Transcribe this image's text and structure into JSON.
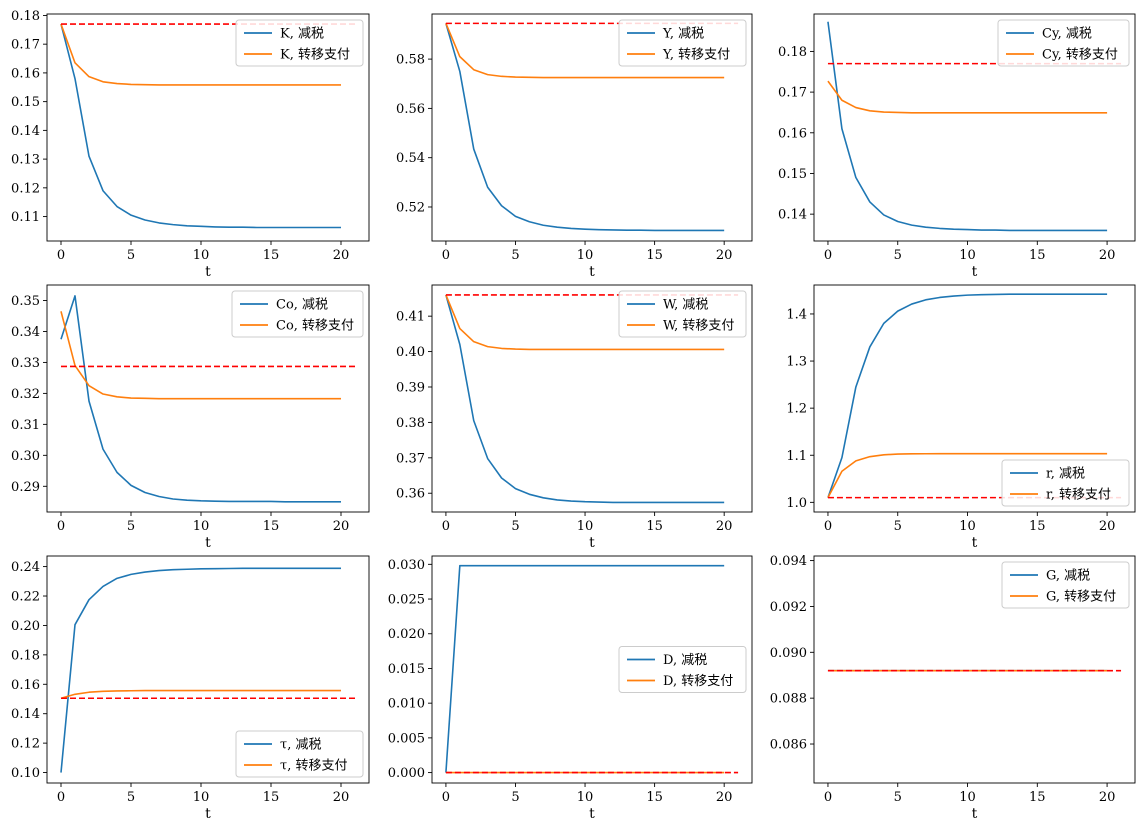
{
  "figure": {
    "background": "#ffffff",
    "colors": {
      "tax_cut": "#1f77b4",
      "transfer": "#ff7f0e",
      "baseline": "#ff0000"
    }
  },
  "chart_data": [
    {
      "type": "line",
      "xlabel": "t",
      "xlim": [
        -1,
        22
      ],
      "ylim": [
        0.1015,
        0.1805
      ],
      "xticks": [
        0,
        5,
        10,
        15,
        20
      ],
      "yticks": [
        0.11,
        0.12,
        0.13,
        0.14,
        0.15,
        0.16,
        0.17,
        0.18
      ],
      "yticklabels": [
        "0.11",
        "0.12",
        "0.13",
        "0.14",
        "0.15",
        "0.16",
        "0.17",
        "0.18"
      ],
      "legend": "upper-right",
      "series": [
        {
          "name": "K, 减税",
          "color": "#1f77b4",
          "values": [
            0.177,
            0.158,
            0.131,
            0.119,
            0.1135,
            0.1105,
            0.1088,
            0.1078,
            0.1072,
            0.1068,
            0.1066,
            0.1064,
            0.1063,
            0.1063,
            0.1062,
            0.1062,
            0.1062,
            0.1062,
            0.1062,
            0.1062,
            0.1062
          ]
        },
        {
          "name": "K, 转移支付",
          "color": "#ff7f0e",
          "values": [
            0.177,
            0.1635,
            0.1587,
            0.1569,
            0.1563,
            0.156,
            0.1559,
            0.1558,
            0.1558,
            0.1558,
            0.1558,
            0.1558,
            0.1558,
            0.1558,
            0.1558,
            0.1558,
            0.1558,
            0.1558,
            0.1558,
            0.1558,
            0.1558
          ]
        }
      ],
      "reference": {
        "x": [
          0,
          21
        ],
        "y": 0.177,
        "color": "#ff0000",
        "style": "dashed"
      }
    },
    {
      "type": "line",
      "xlabel": "t",
      "xlim": [
        -1,
        22
      ],
      "ylim": [
        0.5062,
        0.5983
      ],
      "xticks": [
        0,
        5,
        10,
        15,
        20
      ],
      "yticks": [
        0.52,
        0.54,
        0.56,
        0.58
      ],
      "yticklabels": [
        "0.52",
        "0.54",
        "0.56",
        "0.58"
      ],
      "legend": "upper-right",
      "series": [
        {
          "name": "Y, 减税",
          "color": "#1f77b4",
          "values": [
            0.5945,
            0.575,
            0.5435,
            0.528,
            0.5205,
            0.5162,
            0.514,
            0.5126,
            0.5118,
            0.5113,
            0.511,
            0.5108,
            0.5107,
            0.5106,
            0.5106,
            0.5105,
            0.5105,
            0.5105,
            0.5105,
            0.5105,
            0.5105
          ]
        },
        {
          "name": "Y, 转移支付",
          "color": "#ff7f0e",
          "values": [
            0.5945,
            0.581,
            0.5757,
            0.5737,
            0.573,
            0.5727,
            0.5726,
            0.5725,
            0.5725,
            0.5725,
            0.5725,
            0.5725,
            0.5725,
            0.5725,
            0.5725,
            0.5725,
            0.5725,
            0.5725,
            0.5725,
            0.5725,
            0.5725
          ]
        }
      ],
      "reference": {
        "x": [
          0,
          21
        ],
        "y": 0.5945,
        "color": "#ff0000",
        "style": "dashed"
      }
    },
    {
      "type": "line",
      "xlabel": "t",
      "xlim": [
        -1,
        22
      ],
      "ylim": [
        0.1334,
        0.1892
      ],
      "xticks": [
        0,
        5,
        10,
        15,
        20
      ],
      "yticks": [
        0.14,
        0.15,
        0.16,
        0.17,
        0.18
      ],
      "yticklabels": [
        "0.14",
        "0.15",
        "0.16",
        "0.17",
        "0.18"
      ],
      "legend": "upper-right",
      "series": [
        {
          "name": "Cy, 减税",
          "color": "#1f77b4",
          "values": [
            0.1873,
            0.161,
            0.149,
            0.143,
            0.1398,
            0.1382,
            0.1373,
            0.1368,
            0.1365,
            0.1363,
            0.1362,
            0.1361,
            0.1361,
            0.136,
            0.136,
            0.136,
            0.136,
            0.136,
            0.136,
            0.136,
            0.136
          ]
        },
        {
          "name": "Cy, 转移支付",
          "color": "#ff7f0e",
          "values": [
            0.1727,
            0.168,
            0.1662,
            0.1654,
            0.1651,
            0.165,
            0.1649,
            0.1649,
            0.1649,
            0.1649,
            0.1649,
            0.1649,
            0.1649,
            0.1649,
            0.1649,
            0.1649,
            0.1649,
            0.1649,
            0.1649,
            0.1649,
            0.1649
          ]
        }
      ],
      "reference": {
        "x": [
          0,
          21
        ],
        "y": 0.177,
        "color": "#ff0000",
        "style": "dashed"
      }
    },
    {
      "type": "line",
      "xlabel": "t",
      "xlim": [
        -1,
        22
      ],
      "ylim": [
        0.2817,
        0.355
      ],
      "xticks": [
        0,
        5,
        10,
        15,
        20
      ],
      "yticks": [
        0.29,
        0.3,
        0.31,
        0.32,
        0.33,
        0.34,
        0.35
      ],
      "yticklabels": [
        "0.29",
        "0.30",
        "0.31",
        "0.32",
        "0.33",
        "0.34",
        "0.35"
      ],
      "legend": "upper-right",
      "series": [
        {
          "name": "Co, 减税",
          "color": "#1f77b4",
          "values": [
            0.3375,
            0.3515,
            0.3175,
            0.302,
            0.2945,
            0.2903,
            0.288,
            0.2867,
            0.2859,
            0.2855,
            0.2853,
            0.2852,
            0.2851,
            0.2851,
            0.2851,
            0.2851,
            0.285,
            0.285,
            0.285,
            0.285,
            0.285
          ]
        },
        {
          "name": "Co, 转移支付",
          "color": "#ff7f0e",
          "values": [
            0.3465,
            0.329,
            0.3225,
            0.3198,
            0.3189,
            0.3185,
            0.3184,
            0.3183,
            0.3183,
            0.3183,
            0.3183,
            0.3183,
            0.3183,
            0.3183,
            0.3183,
            0.3183,
            0.3183,
            0.3183,
            0.3183,
            0.3183,
            0.3183
          ]
        }
      ],
      "reference": {
        "x": [
          0,
          21
        ],
        "y": 0.3287,
        "color": "#ff0000",
        "style": "dashed"
      }
    },
    {
      "type": "line",
      "xlabel": "t",
      "xlim": [
        -1,
        22
      ],
      "ylim": [
        0.3547,
        0.4188
      ],
      "xticks": [
        0,
        5,
        10,
        15,
        20
      ],
      "yticks": [
        0.36,
        0.37,
        0.38,
        0.39,
        0.4,
        0.41
      ],
      "yticklabels": [
        "0.36",
        "0.37",
        "0.38",
        "0.39",
        "0.40",
        "0.41"
      ],
      "legend": "upper-right",
      "series": [
        {
          "name": "W, 减税",
          "color": "#1f77b4",
          "values": [
            0.416,
            0.402,
            0.3805,
            0.3698,
            0.3643,
            0.3613,
            0.3597,
            0.3587,
            0.3581,
            0.3578,
            0.3576,
            0.3575,
            0.3574,
            0.3574,
            0.3574,
            0.3574,
            0.3574,
            0.3574,
            0.3574,
            0.3574,
            0.3574
          ]
        },
        {
          "name": "W, 转移支付",
          "color": "#ff7f0e",
          "values": [
            0.416,
            0.4065,
            0.4028,
            0.4014,
            0.4009,
            0.4007,
            0.4006,
            0.4006,
            0.4006,
            0.4006,
            0.4006,
            0.4006,
            0.4006,
            0.4006,
            0.4006,
            0.4006,
            0.4006,
            0.4006,
            0.4006,
            0.4006,
            0.4006
          ]
        }
      ],
      "reference": {
        "x": [
          0,
          21
        ],
        "y": 0.416,
        "color": "#ff0000",
        "style": "dashed"
      }
    },
    {
      "type": "line",
      "xlabel": "t",
      "xlim": [
        -1,
        22
      ],
      "ylim": [
        0.9795,
        1.4615
      ],
      "xticks": [
        0,
        5,
        10,
        15,
        20
      ],
      "yticks": [
        1.0,
        1.1,
        1.2,
        1.3,
        1.4
      ],
      "yticklabels": [
        "1.0",
        "1.1",
        "1.2",
        "1.3",
        "1.4"
      ],
      "legend": "lower-right",
      "series": [
        {
          "name": "r, 减税",
          "color": "#1f77b4",
          "values": [
            1.01,
            1.095,
            1.245,
            1.33,
            1.38,
            1.406,
            1.421,
            1.43,
            1.435,
            1.438,
            1.44,
            1.441,
            1.4415,
            1.442,
            1.442,
            1.442,
            1.442,
            1.442,
            1.442,
            1.442,
            1.442
          ]
        },
        {
          "name": "r, 转移支付",
          "color": "#ff7f0e",
          "values": [
            1.01,
            1.066,
            1.088,
            1.097,
            1.101,
            1.1025,
            1.103,
            1.1032,
            1.1033,
            1.1033,
            1.1033,
            1.1033,
            1.1033,
            1.1033,
            1.1033,
            1.1033,
            1.1033,
            1.1033,
            1.1033,
            1.1033,
            1.1033
          ]
        }
      ],
      "reference": {
        "x": [
          0,
          21
        ],
        "y": 1.01,
        "color": "#ff0000",
        "style": "dashed"
      }
    },
    {
      "type": "line",
      "xlabel": "t",
      "xlim": [
        -1,
        22
      ],
      "ylim": [
        0.0929,
        0.2472
      ],
      "xticks": [
        0,
        5,
        10,
        15,
        20
      ],
      "yticks": [
        0.1,
        0.12,
        0.14,
        0.16,
        0.18,
        0.2,
        0.22,
        0.24
      ],
      "yticklabels": [
        "0.10",
        "0.12",
        "0.14",
        "0.16",
        "0.18",
        "0.20",
        "0.22",
        "0.24"
      ],
      "legend": "lower-right",
      "series": [
        {
          "name": "τ, 减税",
          "color": "#1f77b4",
          "values": [
            0.1,
            0.2005,
            0.2175,
            0.2265,
            0.232,
            0.2347,
            0.2363,
            0.2373,
            0.2379,
            0.2382,
            0.2385,
            0.2386,
            0.2387,
            0.2388,
            0.2388,
            0.2388,
            0.2388,
            0.2388,
            0.2388,
            0.2388,
            0.2388
          ]
        },
        {
          "name": "τ, 转移支付",
          "color": "#ff7f0e",
          "values": [
            0.1505,
            0.1532,
            0.1546,
            0.1552,
            0.1555,
            0.1556,
            0.1557,
            0.1557,
            0.1557,
            0.1557,
            0.1557,
            0.1557,
            0.1557,
            0.1557,
            0.1557,
            0.1557,
            0.1557,
            0.1557,
            0.1557,
            0.1557,
            0.1557
          ]
        }
      ],
      "reference": {
        "x": [
          0,
          21
        ],
        "y": 0.1505,
        "color": "#ff0000",
        "style": "dashed"
      }
    },
    {
      "type": "line",
      "xlabel": "t",
      "xlim": [
        -1,
        22
      ],
      "ylim": [
        -0.0015,
        0.0312
      ],
      "xticks": [
        0,
        5,
        10,
        15,
        20
      ],
      "yticks": [
        0.0,
        0.005,
        0.01,
        0.015,
        0.02,
        0.025,
        0.03
      ],
      "yticklabels": [
        "0.000",
        "0.005",
        "0.010",
        "0.015",
        "0.020",
        "0.025",
        "0.030"
      ],
      "legend": "center-right",
      "series": [
        {
          "name": "D, 减税",
          "color": "#1f77b4",
          "values": [
            0.0,
            0.0298,
            0.0298,
            0.0298,
            0.0298,
            0.0298,
            0.0298,
            0.0298,
            0.0298,
            0.0298,
            0.0298,
            0.0298,
            0.0298,
            0.0298,
            0.0298,
            0.0298,
            0.0298,
            0.0298,
            0.0298,
            0.0298,
            0.0298
          ]
        },
        {
          "name": "D, 转移支付",
          "color": "#ff7f0e",
          "values": [
            0.0,
            0.0,
            0.0,
            0.0,
            0.0,
            0.0,
            0.0,
            0.0,
            0.0,
            0.0,
            0.0,
            0.0,
            0.0,
            0.0,
            0.0,
            0.0,
            0.0,
            0.0,
            0.0,
            0.0,
            0.0
          ]
        }
      ],
      "reference": {
        "x": [
          0,
          21
        ],
        "y": 0.0,
        "color": "#ff0000",
        "style": "dashed"
      }
    },
    {
      "type": "line",
      "xlabel": "t",
      "xlim": [
        -1,
        22
      ],
      "ylim": [
        0.0843,
        0.0942
      ],
      "xticks": [
        0,
        5,
        10,
        15,
        20
      ],
      "yticks": [
        0.086,
        0.088,
        0.09,
        0.092,
        0.094
      ],
      "yticklabels": [
        "0.086",
        "0.088",
        "0.090",
        "0.092",
        "0.094"
      ],
      "legend": "upper-right",
      "series": [
        {
          "name": "G, 减税",
          "color": "#1f77b4",
          "values": [
            0.0892,
            0.0892,
            0.0892,
            0.0892,
            0.0892,
            0.0892,
            0.0892,
            0.0892,
            0.0892,
            0.0892,
            0.0892,
            0.0892,
            0.0892,
            0.0892,
            0.0892,
            0.0892,
            0.0892,
            0.0892,
            0.0892,
            0.0892,
            0.0892
          ]
        },
        {
          "name": "G, 转移支付",
          "color": "#ff7f0e",
          "values": [
            0.0892,
            0.0892,
            0.0892,
            0.0892,
            0.0892,
            0.0892,
            0.0892,
            0.0892,
            0.0892,
            0.0892,
            0.0892,
            0.0892,
            0.0892,
            0.0892,
            0.0892,
            0.0892,
            0.0892,
            0.0892,
            0.0892,
            0.0892,
            0.0892
          ]
        }
      ],
      "reference": {
        "x": [
          0,
          21
        ],
        "y": 0.0892,
        "color": "#ff0000",
        "style": "dashed"
      }
    }
  ]
}
